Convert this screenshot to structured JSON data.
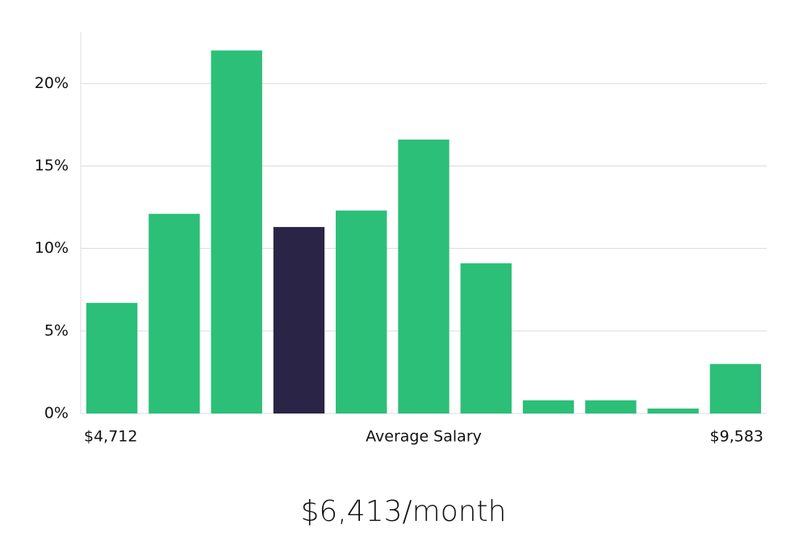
{
  "chart_data": {
    "type": "bar",
    "title": "$6,413/month",
    "xlabel": "Average Salary",
    "x_start_label": "$4,712",
    "x_end_label": "$9,583",
    "categories": [
      null,
      null,
      null,
      null,
      null,
      null,
      null,
      null,
      null,
      null,
      null
    ],
    "values": [
      6.7,
      12.1,
      22.0,
      11.3,
      12.3,
      16.6,
      9.1,
      0.8,
      0.8,
      0.3,
      3.0
    ],
    "colors": [
      "#2bbf78",
      "#2bbf78",
      "#2bbf78",
      "#2a2546",
      "#2bbf78",
      "#2bbf78",
      "#2bbf78",
      "#2bbf78",
      "#2bbf78",
      "#2bbf78",
      "#2bbf78"
    ],
    "ylim": [
      0,
      23.1
    ],
    "yticks": [
      {
        "value": 0,
        "label": "0%"
      },
      {
        "value": 5,
        "label": "5%"
      },
      {
        "value": 10,
        "label": "10%"
      },
      {
        "value": 15,
        "label": "15%"
      },
      {
        "value": 20,
        "label": "20%"
      }
    ],
    "grid": true
  }
}
